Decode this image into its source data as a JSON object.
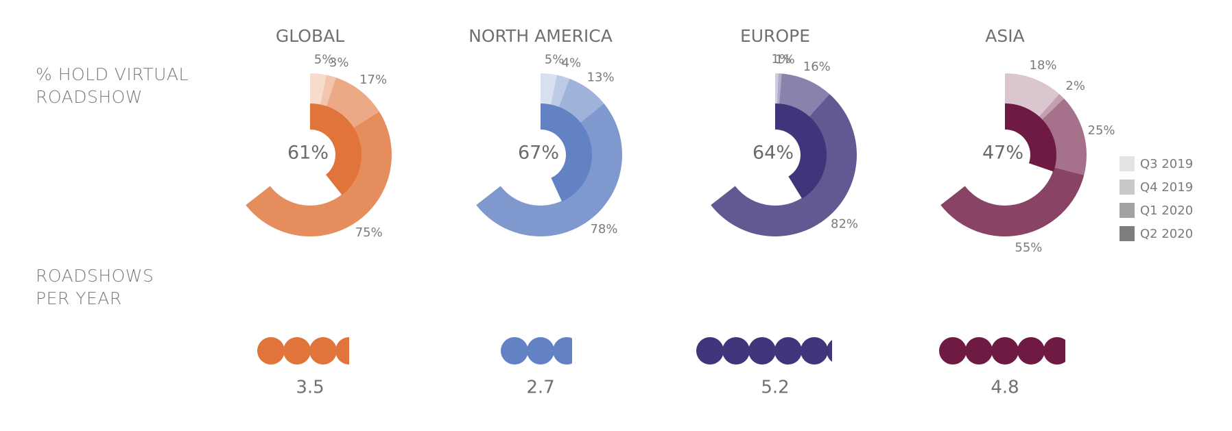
{
  "row_labels": {
    "virtual": [
      "% HOLD VIRTUAL",
      "ROADSHOW"
    ],
    "per_year": [
      "ROADSHOWS",
      "PER YEAR"
    ]
  },
  "legend": [
    {
      "label": "Q3 2019",
      "color": "#e3e3e3"
    },
    {
      "label": "Q4 2019",
      "color": "#c9c9c9"
    },
    {
      "label": "Q1 2020",
      "color": "#a3a3a3"
    },
    {
      "label": "Q2 2020",
      "color": "#7e7e7e"
    }
  ],
  "chart_data": {
    "type": "radial-bar",
    "series_names": [
      "Q3 2019",
      "Q4 2019",
      "Q1 2020",
      "Q2 2020"
    ],
    "regions": [
      {
        "title": "GLOBAL",
        "center_label": "61%",
        "accent": "#e0743a",
        "values": [
          5,
          3,
          17,
          75
        ],
        "value_labels": [
          "5%",
          "3%",
          "17%",
          "75%"
        ],
        "inner_value": 61,
        "roadshows_per_year": 3.5,
        "roadshows_label": "3.5"
      },
      {
        "title": "NORTH AMERICA",
        "center_label": "67%",
        "accent": "#6382c4",
        "values": [
          5,
          4,
          13,
          78
        ],
        "value_labels": [
          "5%",
          "4%",
          "13%",
          "78%"
        ],
        "inner_value": 67,
        "roadshows_per_year": 2.7,
        "roadshows_label": "2.7"
      },
      {
        "title": "EUROPE",
        "center_label": "64%",
        "accent": "#3f357b",
        "values": [
          1,
          1,
          16,
          82
        ],
        "value_labels": [
          "1%",
          "1%",
          "16%",
          "82%"
        ],
        "inner_value": 64,
        "roadshows_per_year": 5.2,
        "roadshows_label": "5.2"
      },
      {
        "title": "ASIA",
        "center_label": "47%",
        "accent": "#6f1a43",
        "values": [
          18,
          2,
          25,
          55
        ],
        "value_labels": [
          "18%",
          "2%",
          "25%",
          "55%"
        ],
        "inner_value": 47,
        "roadshows_per_year": 4.8,
        "roadshows_label": "4.8"
      }
    ]
  }
}
